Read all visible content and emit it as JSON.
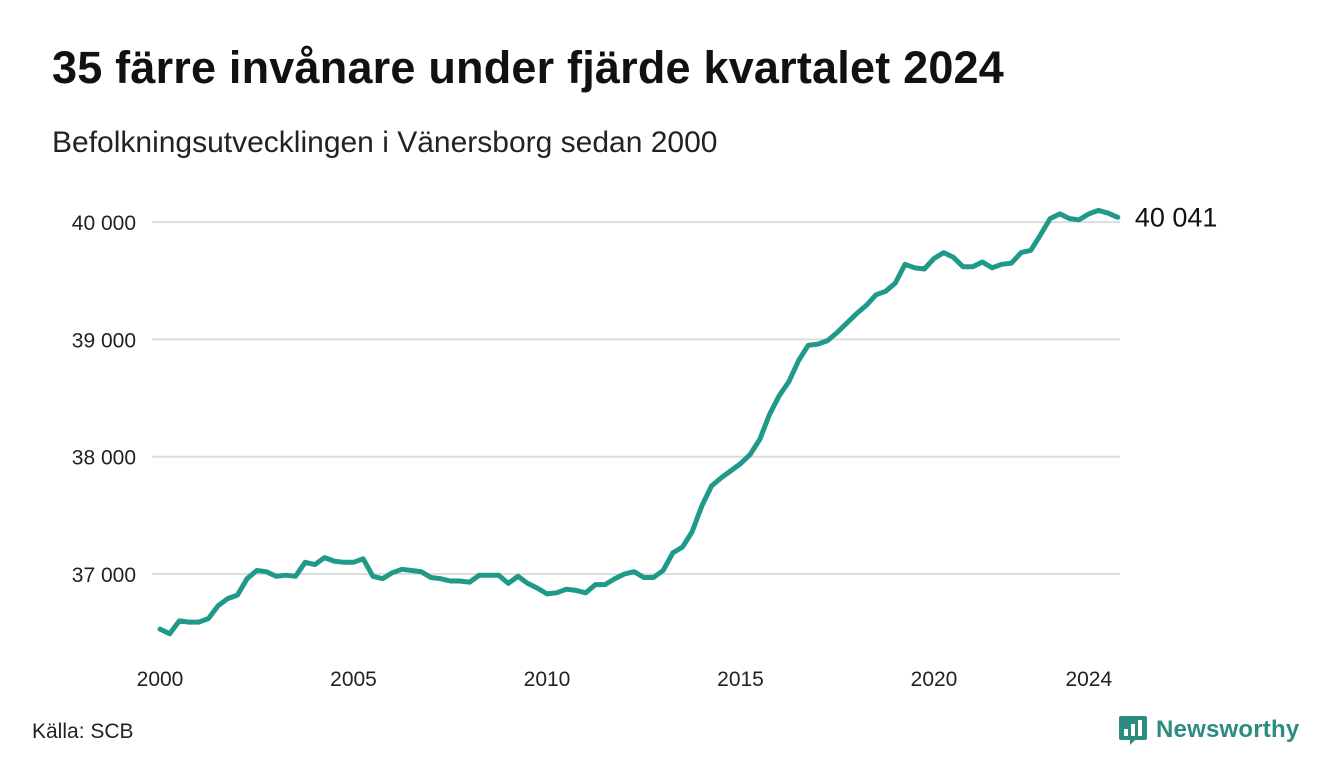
{
  "title": "35 färre invånare under fjärde kvartalet 2024",
  "subtitle": "Befolkningsutvecklingen i Vänersborg sedan 2000",
  "source": "Källa: SCB",
  "brand": {
    "name": "Newsworthy",
    "icon": "newsworthy-logo-icon",
    "color": "#2e8b7f"
  },
  "colors": {
    "line": "#1f9a88",
    "grid": "#dddddd",
    "axis_text": "#222222"
  },
  "chart_data": {
    "type": "line",
    "title": "35 färre invånare under fjärde kvartalet 2024",
    "subtitle": "Befolkningsutvecklingen i Vänersborg sedan 2000",
    "xlabel": "",
    "ylabel": "",
    "x_ticks": [
      2000,
      2005,
      2010,
      2015,
      2020,
      2024
    ],
    "x_tick_labels": [
      "2000",
      "2005",
      "2010",
      "2015",
      "2020",
      "2024"
    ],
    "y_ticks": [
      37000,
      38000,
      39000,
      40000
    ],
    "y_tick_labels": [
      "37 000",
      "38 000",
      "39 000",
      "40 000"
    ],
    "xlim": [
      2000.0,
      2024.75
    ],
    "ylim": [
      36400,
      40150
    ],
    "grid": "horizontal",
    "legend": "none",
    "end_label": "40 041",
    "series": [
      {
        "x": [
          2000.0,
          2000.25,
          2000.5,
          2000.75,
          2001.0,
          2001.25,
          2001.5,
          2001.75,
          2002.0,
          2002.25,
          2002.5,
          2002.75,
          2003.0,
          2003.25,
          2003.5,
          2003.75,
          2004.0,
          2004.25,
          2004.5,
          2004.75,
          2005.0,
          2005.25,
          2005.5,
          2005.75,
          2006.0,
          2006.25,
          2006.5,
          2006.75,
          2007.0,
          2007.25,
          2007.5,
          2007.75,
          2008.0,
          2008.25,
          2008.5,
          2008.75,
          2009.0,
          2009.25,
          2009.5,
          2009.75,
          2010.0,
          2010.25,
          2010.5,
          2010.75,
          2011.0,
          2011.25,
          2011.5,
          2011.75,
          2012.0,
          2012.25,
          2012.5,
          2012.75,
          2013.0,
          2013.25,
          2013.5,
          2013.75,
          2014.0,
          2014.25,
          2014.5,
          2014.75,
          2015.0,
          2015.25,
          2015.5,
          2015.75,
          2016.0,
          2016.25,
          2016.5,
          2016.75,
          2017.0,
          2017.25,
          2017.5,
          2017.75,
          2018.0,
          2018.25,
          2018.5,
          2018.75,
          2019.0,
          2019.25,
          2019.5,
          2019.75,
          2020.0,
          2020.25,
          2020.5,
          2020.75,
          2021.0,
          2021.25,
          2021.5,
          2021.75,
          2022.0,
          2022.25,
          2022.5,
          2022.75,
          2023.0,
          2023.25,
          2023.5,
          2023.75,
          2024.0,
          2024.25,
          2024.5,
          2024.75
        ],
        "y": [
          36530,
          36490,
          36600,
          36590,
          36590,
          36620,
          36730,
          36790,
          36820,
          36960,
          37030,
          37020,
          36980,
          36990,
          36980,
          37100,
          37080,
          37140,
          37110,
          37100,
          37100,
          37130,
          36980,
          36960,
          37010,
          37040,
          37030,
          37020,
          36970,
          36960,
          36940,
          36940,
          36930,
          36990,
          36990,
          36990,
          36920,
          36980,
          36920,
          36880,
          36830,
          36840,
          36870,
          36860,
          36840,
          36910,
          36910,
          36960,
          37000,
          37020,
          36970,
          36970,
          37030,
          37180,
          37230,
          37360,
          37580,
          37750,
          37820,
          37880,
          37940,
          38020,
          38150,
          38360,
          38520,
          38640,
          38820,
          38950,
          38960,
          38990,
          39060,
          39140,
          39220,
          39290,
          39380,
          39410,
          39480,
          39640,
          39610,
          39600,
          39690,
          39740,
          39700,
          39620,
          39620,
          39660,
          39610,
          39640,
          39650,
          39740,
          39760,
          39890,
          40030,
          40070,
          40030,
          40020,
          40070,
          40100,
          40076,
          40041
        ]
      }
    ]
  }
}
